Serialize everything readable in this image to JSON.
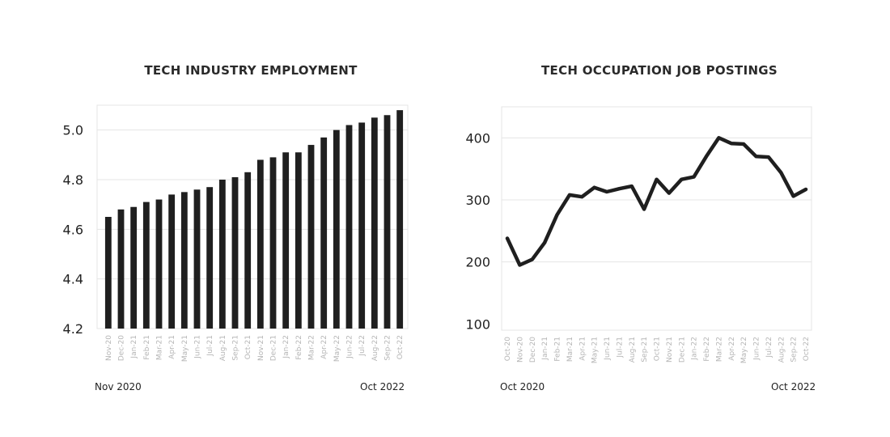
{
  "chart_data": [
    {
      "type": "bar",
      "title": "TECH INDUSTRY EMPLOYMENT",
      "categories": [
        "Nov-20",
        "Dec-20",
        "Jan-21",
        "Feb-21",
        "Mar-21",
        "Apr-21",
        "May-21",
        "Jun-21",
        "Jul-21",
        "Aug-21",
        "Sep-21",
        "Oct-21",
        "Nov-21",
        "Dec-21",
        "Jan-22",
        "Feb-22",
        "Mar-22",
        "Apr-22",
        "May-22",
        "Jun-22",
        "Jul-22",
        "Aug-22",
        "Sep-22",
        "Oct-22"
      ],
      "values": [
        4.65,
        4.68,
        4.69,
        4.71,
        4.72,
        4.74,
        4.75,
        4.76,
        4.77,
        4.8,
        4.81,
        4.83,
        4.88,
        4.89,
        4.91,
        4.91,
        4.94,
        4.97,
        5.0,
        5.02,
        5.03,
        5.05,
        5.06,
        5.08
      ],
      "ylim": [
        4.2,
        5.1
      ],
      "yticks": [
        "4.2",
        "4.4",
        "4.6",
        "4.8",
        "5.0"
      ],
      "grid": true,
      "range_start": "Nov 2020",
      "range_end": "Oct 2022",
      "bar_color": "#1f1f1f"
    },
    {
      "type": "line",
      "title": "TECH OCCUPATION JOB POSTINGS",
      "categories": [
        "Oct-20",
        "Nov-20",
        "Dec-20",
        "Jan-21",
        "Feb-21",
        "Mar-21",
        "Apr-21",
        "May-21",
        "Jun-21",
        "Jul-21",
        "Aug-21",
        "Sep-21",
        "Oct-21",
        "Nov-21",
        "Dec-21",
        "Jan-22",
        "Feb-22",
        "Mar-22",
        "Apr-22",
        "May-22",
        "Jun-22",
        "Jul-22",
        "Aug-22",
        "Sep-22",
        "Oct-22"
      ],
      "values": [
        238,
        195,
        204,
        231,
        276,
        308,
        305,
        320,
        313,
        318,
        322,
        285,
        333,
        311,
        333,
        337,
        370,
        400,
        391,
        390,
        370,
        369,
        344,
        306,
        317
      ],
      "ylim": [
        90,
        450
      ],
      "yticks": [
        "100",
        "200",
        "300",
        "400"
      ],
      "grid": true,
      "range_start": "Oct 2020",
      "range_end": "Oct 2022",
      "line_color": "#1f1f1f"
    }
  ]
}
